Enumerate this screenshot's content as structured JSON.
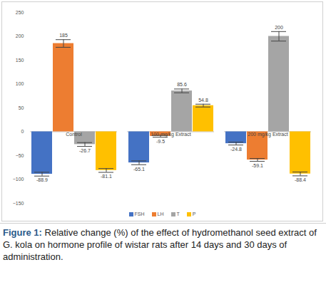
{
  "chart_data": {
    "type": "bar",
    "caption": "Figure 1: Relative change (%) of the effect of hydromethanol seed extract of G. kola on hormone profile of wistar rats after 14 days and 30 days of administration.",
    "categories": [
      "Control",
      "100 mg/kg Extract",
      "200 mg/kg Extract"
    ],
    "series": [
      {
        "name": "FSH",
        "color": "#4472c4",
        "values": [
          -88.9,
          -65.1,
          -24.8
        ],
        "errors": [
          4,
          4,
          3
        ]
      },
      {
        "name": "LH",
        "color": "#ed7d31",
        "values": [
          185,
          -9.5,
          -59.1
        ],
        "errors": [
          8,
          2,
          3
        ]
      },
      {
        "name": "T",
        "color": "#a5a5a5",
        "values": [
          -26.7,
          85.6,
          200
        ],
        "errors": [
          4,
          4,
          10
        ]
      },
      {
        "name": "P",
        "color": "#ffc000",
        "values": [
          -81.1,
          54.8,
          -88.4
        ],
        "errors": [
          4,
          3,
          4
        ]
      }
    ],
    "ylim": [
      -150,
      250
    ],
    "yticks": [
      -150,
      -100,
      -50,
      0,
      50,
      100,
      150,
      200,
      250
    ],
    "grid": false,
    "data_labels": true,
    "legend": "bottom"
  }
}
